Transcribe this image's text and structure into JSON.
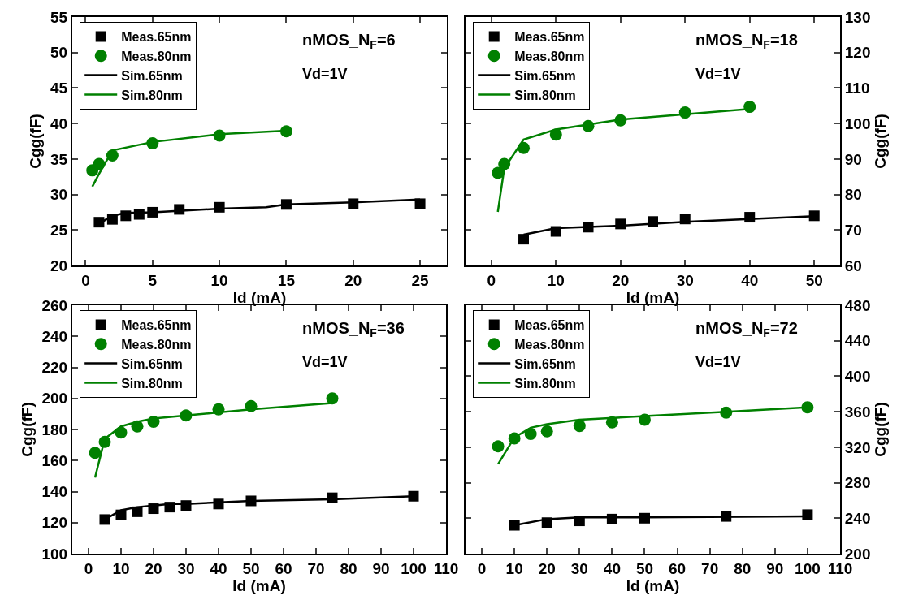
{
  "chart_data": [
    {
      "type": "scatter",
      "xlabel": "Id (mA)",
      "ylabel": "Cgg(fF)",
      "xlim": [
        -1,
        27
      ],
      "xticks": [
        0,
        5,
        10,
        15,
        20,
        25
      ],
      "ylim": [
        20,
        55
      ],
      "yticks": [
        20,
        25,
        30,
        35,
        40,
        45,
        50,
        55
      ],
      "grid": false,
      "legend": "top left",
      "annotations": [
        "nMOS_N$_{F}$=6",
        "Vd=1V"
      ],
      "series": [
        {
          "name": "Meas.65nm",
          "marker": "square",
          "color": "#000000",
          "x": [
            1,
            2,
            3,
            4,
            5,
            7,
            10,
            15,
            20,
            25
          ],
          "values": [
            26.1,
            26.5,
            27.0,
            27.2,
            27.5,
            27.9,
            28.2,
            28.6,
            28.7,
            28.7
          ]
        },
        {
          "name": "Meas.80nm",
          "marker": "circle",
          "color": "#008000",
          "x": [
            0.5,
            1,
            2,
            5,
            10,
            15
          ],
          "values": [
            33.4,
            34.3,
            35.5,
            37.2,
            38.3,
            38.9
          ]
        },
        {
          "name": "Sim.65nm",
          "type": "line",
          "line_style": "solid",
          "color": "#000000",
          "x": [
            1,
            2,
            3,
            5,
            10,
            13.5,
            15,
            20,
            25
          ],
          "values": [
            25.9,
            27.0,
            27.4,
            27.5,
            28.0,
            28.2,
            28.6,
            28.9,
            29.3
          ]
        },
        {
          "name": "Sim.80nm",
          "type": "line",
          "line_style": "solid",
          "color": "#008000",
          "x": [
            0.5,
            1,
            2,
            5,
            10,
            15
          ],
          "values": [
            31.1,
            32.9,
            36.2,
            37.4,
            38.5,
            39.0
          ]
        }
      ]
    },
    {
      "type": "scatter",
      "xlabel": "Id (mA)",
      "y2label": "Cgg(fF)",
      "xlim": [
        -4,
        54
      ],
      "xticks": [
        0,
        10,
        20,
        30,
        40,
        50
      ],
      "y2lim": [
        60,
        130
      ],
      "y2ticks": [
        60,
        70,
        80,
        90,
        100,
        110,
        120,
        130
      ],
      "grid": false,
      "legend": "top left",
      "annotations": [
        "nMOS_N$_{F}$=18",
        "Vd=1V"
      ],
      "series": [
        {
          "name": "Meas.65nm",
          "marker": "square",
          "axis": "y2",
          "color": "#000000",
          "x": [
            5,
            10,
            15,
            20,
            25,
            30,
            40,
            50
          ],
          "values": [
            67.4,
            69.6,
            70.8,
            71.7,
            72.4,
            73.1,
            73.6,
            74.0
          ]
        },
        {
          "name": "Meas.80nm",
          "marker": "circle",
          "axis": "y2",
          "color": "#008000",
          "x": [
            1,
            2,
            5,
            10,
            15,
            20,
            30,
            40
          ],
          "values": [
            86.1,
            88.6,
            93.1,
            96.9,
            99.3,
            100.9,
            103.1,
            104.7
          ]
        },
        {
          "name": "Sim.65nm",
          "type": "line",
          "line_style": "solid",
          "axis": "y2",
          "color": "#000000",
          "x": [
            5,
            10,
            20,
            30,
            40,
            50
          ],
          "values": [
            68.7,
            70.5,
            71.2,
            72.3,
            73.1,
            73.9
          ]
        },
        {
          "name": "Sim.80nm",
          "type": "line",
          "line_style": "solid",
          "axis": "y2",
          "color": "#008000",
          "x": [
            1,
            2,
            5,
            10,
            20,
            30,
            40
          ],
          "values": [
            75.1,
            87.4,
            95.5,
            98.3,
            101.1,
            102.6,
            104.1
          ]
        }
      ]
    },
    {
      "type": "scatter",
      "xlabel": "Id (mA)",
      "ylabel": "Cgg(fF)",
      "xlim": [
        -5,
        110
      ],
      "xticks": [
        0,
        10,
        20,
        30,
        40,
        50,
        60,
        70,
        80,
        90,
        100,
        110
      ],
      "ylim": [
        100,
        260
      ],
      "yticks": [
        100,
        120,
        140,
        160,
        180,
        200,
        220,
        240,
        260
      ],
      "grid": false,
      "legend": "top left",
      "annotations": [
        "nMOS_N$_{F}$=36",
        "Vd=1V"
      ],
      "series": [
        {
          "name": "Meas.65nm",
          "marker": "square",
          "color": "#000000",
          "x": [
            5,
            10,
            15,
            20,
            25,
            30,
            40,
            50,
            75,
            100
          ],
          "values": [
            122,
            125,
            127,
            129,
            130,
            131,
            132,
            134,
            136,
            137
          ]
        },
        {
          "name": "Meas.80nm",
          "marker": "circle",
          "color": "#008000",
          "x": [
            2,
            5,
            10,
            15,
            20,
            30,
            40,
            50,
            75
          ],
          "values": [
            165,
            172,
            178,
            182,
            185,
            189,
            193,
            195,
            200
          ]
        },
        {
          "name": "Sim.65nm",
          "type": "line",
          "line_style": "solid",
          "color": "#000000",
          "x": [
            5,
            10,
            15,
            20,
            25,
            30,
            50,
            75,
            100
          ],
          "values": [
            122,
            128,
            130,
            131,
            132,
            132,
            134,
            135,
            137
          ]
        },
        {
          "name": "Sim.80nm",
          "type": "line",
          "line_style": "solid",
          "color": "#008000",
          "x": [
            2,
            5,
            10,
            15,
            20,
            30,
            50,
            75
          ],
          "values": [
            149,
            174,
            182,
            185,
            187,
            189,
            193,
            197
          ]
        }
      ]
    },
    {
      "type": "scatter",
      "xlabel": "Id (mA)",
      "y2label": "Cgg(fF)",
      "xlim": [
        -5,
        110
      ],
      "xticks": [
        0,
        10,
        20,
        30,
        40,
        50,
        60,
        70,
        80,
        90,
        100,
        110
      ],
      "y2lim": [
        200,
        480
      ],
      "y2ticks": [
        200,
        240,
        280,
        320,
        360,
        400,
        440,
        480
      ],
      "grid": false,
      "legend": "top left",
      "annotations": [
        "nMOS_N$_{F}$=72",
        "Vd=1V"
      ],
      "series": [
        {
          "name": "Meas.65nm",
          "marker": "square",
          "axis": "y2",
          "color": "#000000",
          "x": [
            10,
            20,
            30,
            40,
            50,
            75,
            100
          ],
          "values": [
            232,
            235,
            237,
            239,
            240,
            242,
            244
          ]
        },
        {
          "name": "Meas.80nm",
          "marker": "circle",
          "axis": "y2",
          "color": "#008000",
          "x": [
            5,
            10,
            15,
            20,
            30,
            40,
            50,
            75,
            100
          ],
          "values": [
            321,
            330,
            335,
            338,
            344,
            348,
            351,
            359,
            365
          ]
        },
        {
          "name": "Sim.65nm",
          "type": "line",
          "line_style": "solid",
          "axis": "y2",
          "color": "#000000",
          "x": [
            10,
            20,
            30,
            50,
            100
          ],
          "values": [
            232,
            239,
            241,
            241,
            242
          ]
        },
        {
          "name": "Sim.80nm",
          "type": "line",
          "line_style": "solid",
          "axis": "y2",
          "color": "#008000",
          "x": [
            5,
            10,
            15,
            20,
            30,
            50,
            75,
            100
          ],
          "values": [
            301,
            331,
            342,
            346,
            351,
            355,
            360,
            365
          ]
        }
      ]
    }
  ]
}
